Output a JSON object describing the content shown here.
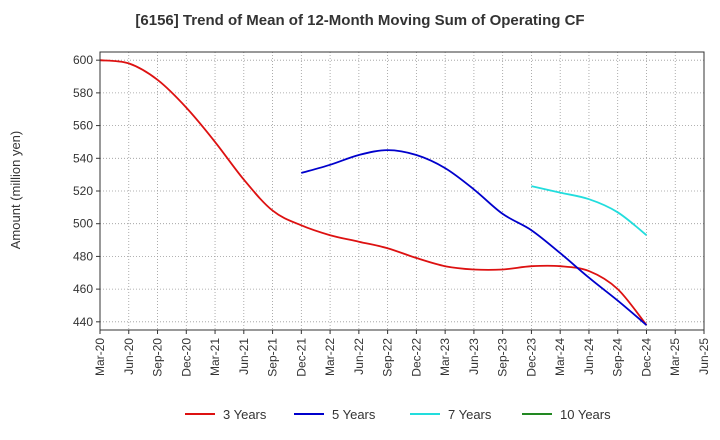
{
  "chart_data": {
    "type": "line",
    "title": "[6156]  Trend of Mean of 12-Month Moving Sum of Operating CF",
    "xlabel": "",
    "ylabel": "Amount (million yen)",
    "ylim": [
      435,
      605
    ],
    "yticks": [
      440,
      460,
      480,
      500,
      520,
      540,
      560,
      580,
      600
    ],
    "xlim": [
      0,
      21
    ],
    "grid": true,
    "legend_position": "bottom",
    "categories": [
      "Mar-20",
      "Jun-20",
      "Sep-20",
      "Dec-20",
      "Mar-21",
      "Jun-21",
      "Sep-21",
      "Dec-21",
      "Mar-22",
      "Jun-22",
      "Sep-22",
      "Dec-22",
      "Mar-23",
      "Jun-23",
      "Sep-23",
      "Dec-23",
      "Mar-24",
      "Jun-24",
      "Sep-24",
      "Dec-24",
      "Mar-25",
      "Jun-25"
    ],
    "series": [
      {
        "name": "3 Years",
        "color": "#dd1111",
        "x": [
          0,
          1,
          2,
          3,
          4,
          5,
          6,
          7,
          8,
          9,
          10,
          11,
          12,
          13,
          14,
          15,
          16,
          17,
          18,
          19
        ],
        "values": [
          600,
          598,
          588,
          571,
          550,
          527,
          508,
          499,
          493,
          489,
          485,
          479,
          474,
          472,
          472,
          474,
          474,
          471,
          460,
          438
        ]
      },
      {
        "name": "5 Years",
        "color": "#0000cc",
        "x": [
          7,
          8,
          9,
          10,
          11,
          12,
          13,
          14,
          15,
          16,
          17,
          18,
          19
        ],
        "values": [
          531,
          536,
          542,
          545,
          542,
          534,
          521,
          506,
          496,
          482,
          467,
          453,
          438
        ]
      },
      {
        "name": "7 Years",
        "color": "#22dddd",
        "x": [
          15,
          16,
          17,
          18,
          19
        ],
        "values": [
          523,
          519,
          515,
          507,
          493
        ]
      },
      {
        "name": "10 Years",
        "color": "#228822",
        "x": [],
        "values": []
      }
    ]
  }
}
